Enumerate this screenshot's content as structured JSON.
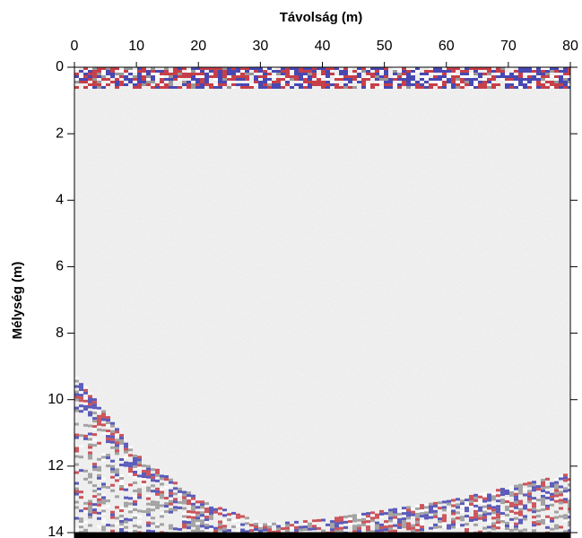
{
  "chart_data": {
    "type": "radargram",
    "title": "Távolság (m)",
    "y_label": "Mélység (m)",
    "xlim": [
      0,
      80
    ],
    "xticks": [
      0,
      10,
      20,
      30,
      40,
      50,
      60,
      70,
      80
    ],
    "x_axis_position": "top",
    "ylim": [
      0,
      14
    ],
    "yticks": [
      0,
      2,
      4,
      6,
      8,
      10,
      12,
      14
    ],
    "y_inverted": true
  }
}
